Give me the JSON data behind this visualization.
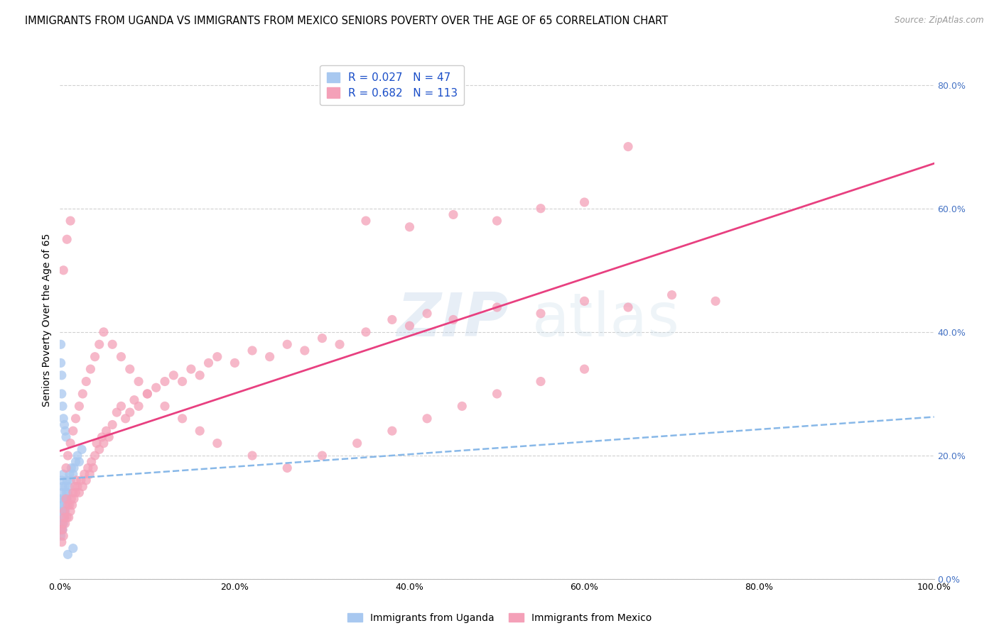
{
  "title": "IMMIGRANTS FROM UGANDA VS IMMIGRANTS FROM MEXICO SENIORS POVERTY OVER THE AGE OF 65 CORRELATION CHART",
  "source": "Source: ZipAtlas.com",
  "ylabel": "Seniors Poverty Over the Age of 65",
  "watermark_zip": "ZIP",
  "watermark_atlas": "atlas",
  "legend_uganda": "Immigrants from Uganda",
  "legend_mexico": "Immigrants from Mexico",
  "uganda_R": "0.027",
  "uganda_N": "47",
  "mexico_R": "0.682",
  "mexico_N": "113",
  "color_uganda": "#a8c8f0",
  "color_mexico": "#f4a0b8",
  "color_uganda_line": "#88b8e8",
  "color_mexico_line": "#e84080",
  "xlim": [
    0,
    1.0
  ],
  "ylim": [
    0,
    0.84
  ],
  "xticks": [
    0.0,
    0.2,
    0.4,
    0.6,
    0.8,
    1.0
  ],
  "xtick_labels": [
    "0.0%",
    "20.0%",
    "40.0%",
    "60.0%",
    "80.0%",
    "100.0%"
  ],
  "yticks_right": [
    0.0,
    0.2,
    0.4,
    0.6,
    0.8
  ],
  "ytick_labels_right": [
    "0.0%",
    "20.0%",
    "40.0%",
    "60.0%",
    "80.0%"
  ],
  "uganda_x": [
    0.001,
    0.001,
    0.001,
    0.001,
    0.002,
    0.002,
    0.002,
    0.002,
    0.002,
    0.003,
    0.003,
    0.003,
    0.003,
    0.004,
    0.004,
    0.004,
    0.005,
    0.005,
    0.006,
    0.006,
    0.006,
    0.007,
    0.007,
    0.008,
    0.008,
    0.009,
    0.01,
    0.011,
    0.012,
    0.013,
    0.015,
    0.016,
    0.018,
    0.02,
    0.022,
    0.025,
    0.001,
    0.001,
    0.002,
    0.002,
    0.003,
    0.004,
    0.005,
    0.006,
    0.007,
    0.009,
    0.015
  ],
  "uganda_y": [
    0.07,
    0.09,
    0.11,
    0.13,
    0.08,
    0.1,
    0.12,
    0.14,
    0.16,
    0.08,
    0.1,
    0.12,
    0.15,
    0.09,
    0.11,
    0.17,
    0.1,
    0.13,
    0.11,
    0.13,
    0.15,
    0.12,
    0.14,
    0.13,
    0.16,
    0.14,
    0.15,
    0.17,
    0.16,
    0.18,
    0.17,
    0.18,
    0.19,
    0.2,
    0.19,
    0.21,
    0.38,
    0.35,
    0.33,
    0.3,
    0.28,
    0.26,
    0.25,
    0.24,
    0.23,
    0.04,
    0.05
  ],
  "mexico_x": [
    0.001,
    0.002,
    0.003,
    0.004,
    0.005,
    0.006,
    0.007,
    0.008,
    0.009,
    0.01,
    0.011,
    0.012,
    0.013,
    0.014,
    0.015,
    0.016,
    0.017,
    0.018,
    0.019,
    0.02,
    0.022,
    0.024,
    0.026,
    0.028,
    0.03,
    0.032,
    0.034,
    0.036,
    0.038,
    0.04,
    0.042,
    0.045,
    0.048,
    0.05,
    0.053,
    0.056,
    0.06,
    0.065,
    0.07,
    0.075,
    0.08,
    0.085,
    0.09,
    0.1,
    0.11,
    0.12,
    0.13,
    0.14,
    0.15,
    0.16,
    0.17,
    0.18,
    0.2,
    0.22,
    0.24,
    0.26,
    0.28,
    0.3,
    0.32,
    0.35,
    0.38,
    0.4,
    0.42,
    0.45,
    0.5,
    0.55,
    0.6,
    0.65,
    0.7,
    0.75,
    0.003,
    0.005,
    0.007,
    0.009,
    0.012,
    0.015,
    0.018,
    0.022,
    0.026,
    0.03,
    0.035,
    0.04,
    0.045,
    0.05,
    0.06,
    0.07,
    0.08,
    0.09,
    0.1,
    0.12,
    0.14,
    0.16,
    0.18,
    0.22,
    0.26,
    0.3,
    0.34,
    0.38,
    0.42,
    0.46,
    0.5,
    0.55,
    0.6,
    0.35,
    0.4,
    0.45,
    0.5,
    0.55,
    0.6,
    0.65,
    0.004,
    0.008,
    0.012
  ],
  "mexico_y": [
    0.08,
    0.06,
    0.09,
    0.07,
    0.11,
    0.09,
    0.13,
    0.1,
    0.12,
    0.1,
    0.12,
    0.11,
    0.13,
    0.12,
    0.14,
    0.13,
    0.15,
    0.14,
    0.16,
    0.15,
    0.14,
    0.16,
    0.15,
    0.17,
    0.16,
    0.18,
    0.17,
    0.19,
    0.18,
    0.2,
    0.22,
    0.21,
    0.23,
    0.22,
    0.24,
    0.23,
    0.25,
    0.27,
    0.28,
    0.26,
    0.27,
    0.29,
    0.28,
    0.3,
    0.31,
    0.32,
    0.33,
    0.32,
    0.34,
    0.33,
    0.35,
    0.36,
    0.35,
    0.37,
    0.36,
    0.38,
    0.37,
    0.39,
    0.38,
    0.4,
    0.42,
    0.41,
    0.43,
    0.42,
    0.44,
    0.43,
    0.45,
    0.44,
    0.46,
    0.45,
    0.08,
    0.1,
    0.18,
    0.2,
    0.22,
    0.24,
    0.26,
    0.28,
    0.3,
    0.32,
    0.34,
    0.36,
    0.38,
    0.4,
    0.38,
    0.36,
    0.34,
    0.32,
    0.3,
    0.28,
    0.26,
    0.24,
    0.22,
    0.2,
    0.18,
    0.2,
    0.22,
    0.24,
    0.26,
    0.28,
    0.3,
    0.32,
    0.34,
    0.58,
    0.57,
    0.59,
    0.58,
    0.6,
    0.61,
    0.7,
    0.5,
    0.55,
    0.58
  ],
  "bg_color": "#ffffff",
  "grid_color": "#d0d0d0",
  "right_tick_color": "#4472c4",
  "title_fontsize": 10.5,
  "label_fontsize": 10,
  "tick_fontsize": 9,
  "legend_fontsize": 11
}
